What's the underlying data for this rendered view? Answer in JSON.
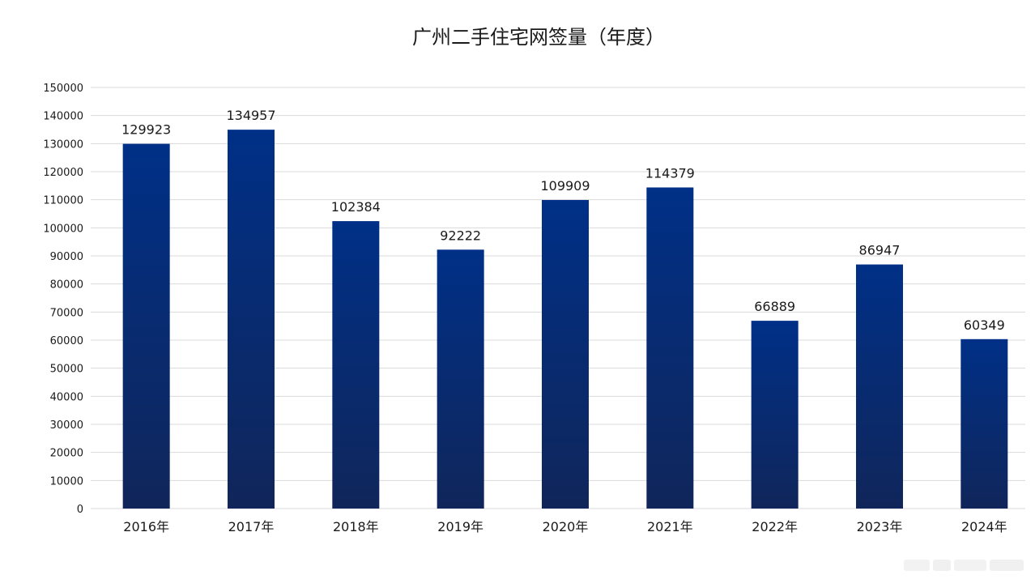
{
  "chart_data": {
    "type": "bar",
    "title": "广州二手住宅网签量（年度）",
    "categories": [
      "2016年",
      "2017年",
      "2018年",
      "2019年",
      "2020年",
      "2021年",
      "2022年",
      "2023年",
      "2024年"
    ],
    "values": [
      129923,
      134957,
      102384,
      92222,
      109909,
      114379,
      66889,
      86947,
      60349
    ],
    "xlabel": "",
    "ylabel": "",
    "ylim": [
      0,
      150000
    ],
    "ytick_step": 10000,
    "yticks": [
      "0",
      "10000",
      "20000",
      "30000",
      "40000",
      "50000",
      "60000",
      "70000",
      "80000",
      "90000",
      "100000",
      "110000",
      "120000",
      "130000",
      "140000",
      "150000"
    ],
    "grid": true,
    "legend": "none",
    "data_labels": [
      "129923",
      "134957",
      "102384",
      "92222",
      "109909",
      "114379",
      "66889",
      "86947",
      "60349"
    ],
    "bar_gradient_top": "#003087",
    "bar_gradient_bottom": "#10265a"
  }
}
